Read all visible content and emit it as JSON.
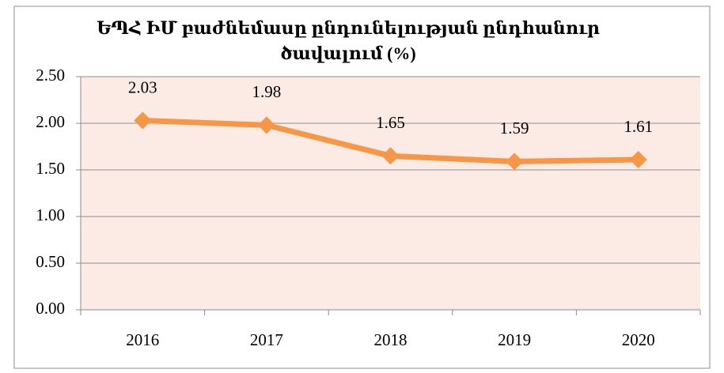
{
  "chart_data": {
    "type": "line",
    "title": [
      "ԵՊՀ ԻՄ բաժնեմասը ընդունելության ընդհանուր",
      "ծավալում (%)"
    ],
    "categories": [
      "2016",
      "2017",
      "2018",
      "2019",
      "2020"
    ],
    "values": [
      2.03,
      1.98,
      1.65,
      1.59,
      1.61
    ],
    "color": "#f79646",
    "ylim": [
      0,
      2.5
    ],
    "yticks": [
      {
        "value": 0,
        "label": "0.00"
      },
      {
        "value": 0.5,
        "label": "0.50"
      },
      {
        "value": 1,
        "label": "1.00"
      },
      {
        "value": 1.5,
        "label": "1.50"
      },
      {
        "value": 2,
        "label": "2.00"
      },
      {
        "value": 2.5,
        "label": "2.50"
      }
    ],
    "grid": true
  }
}
